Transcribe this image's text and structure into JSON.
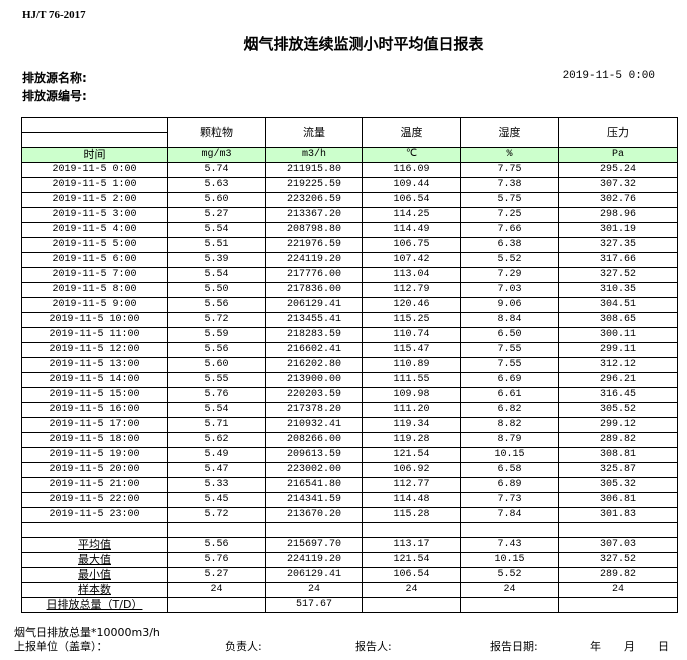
{
  "standard": "HJ/T  76-2017",
  "title": "烟气排放连续监测小时平均值日报表",
  "source_name_label": "排放源名称:",
  "source_id_label": "排放源编号:",
  "report_datetime": "2019-11-5 0:00",
  "columns": [
    "颗粒物",
    "流量",
    "温度",
    "湿度",
    "压力"
  ],
  "time_label": "时间",
  "units": [
    "mg/m3",
    "m3/h",
    "℃",
    "%",
    "Pa"
  ],
  "header_fill_color": "#ccffcc",
  "rows": [
    [
      "2019-11-5 0:00",
      "5.74",
      "211915.80",
      "116.09",
      "7.75",
      "295.24"
    ],
    [
      "2019-11-5 1:00",
      "5.63",
      "219225.59",
      "109.44",
      "7.38",
      "307.32"
    ],
    [
      "2019-11-5 2:00",
      "5.60",
      "223206.59",
      "106.54",
      "5.75",
      "302.76"
    ],
    [
      "2019-11-5 3:00",
      "5.27",
      "213367.20",
      "114.25",
      "7.25",
      "298.96"
    ],
    [
      "2019-11-5 4:00",
      "5.54",
      "208798.80",
      "114.49",
      "7.66",
      "301.19"
    ],
    [
      "2019-11-5 5:00",
      "5.51",
      "221976.59",
      "106.75",
      "6.38",
      "327.35"
    ],
    [
      "2019-11-5 6:00",
      "5.39",
      "224119.20",
      "107.42",
      "5.52",
      "317.66"
    ],
    [
      "2019-11-5 7:00",
      "5.54",
      "217776.00",
      "113.04",
      "7.29",
      "327.52"
    ],
    [
      "2019-11-5 8:00",
      "5.50",
      "217836.00",
      "112.79",
      "7.03",
      "310.35"
    ],
    [
      "2019-11-5 9:00",
      "5.56",
      "206129.41",
      "120.46",
      "9.06",
      "304.51"
    ],
    [
      "2019-11-5 10:00",
      "5.72",
      "213455.41",
      "115.25",
      "8.84",
      "308.65"
    ],
    [
      "2019-11-5 11:00",
      "5.59",
      "218283.59",
      "110.74",
      "6.50",
      "300.11"
    ],
    [
      "2019-11-5 12:00",
      "5.56",
      "216602.41",
      "115.47",
      "7.55",
      "299.11"
    ],
    [
      "2019-11-5 13:00",
      "5.60",
      "216202.80",
      "110.89",
      "7.55",
      "312.12"
    ],
    [
      "2019-11-5 14:00",
      "5.55",
      "213900.00",
      "111.55",
      "6.69",
      "296.21"
    ],
    [
      "2019-11-5 15:00",
      "5.76",
      "220203.59",
      "109.98",
      "6.61",
      "316.45"
    ],
    [
      "2019-11-5 16:00",
      "5.54",
      "217378.20",
      "111.20",
      "6.82",
      "305.52"
    ],
    [
      "2019-11-5 17:00",
      "5.71",
      "210932.41",
      "119.34",
      "8.82",
      "299.12"
    ],
    [
      "2019-11-5 18:00",
      "5.62",
      "208266.00",
      "119.28",
      "8.79",
      "289.82"
    ],
    [
      "2019-11-5 19:00",
      "5.49",
      "209613.59",
      "121.54",
      "10.15",
      "308.81"
    ],
    [
      "2019-11-5 20:00",
      "5.47",
      "223002.00",
      "106.92",
      "6.58",
      "325.87"
    ],
    [
      "2019-11-5 21:00",
      "5.33",
      "216541.80",
      "112.77",
      "6.89",
      "305.32"
    ],
    [
      "2019-11-5 22:00",
      "5.45",
      "214341.59",
      "114.48",
      "7.73",
      "306.81"
    ],
    [
      "2019-11-5 23:00",
      "5.72",
      "213670.20",
      "115.28",
      "7.84",
      "301.83"
    ]
  ],
  "summary": [
    [
      "平均值",
      "5.56",
      "215697.70",
      "113.17",
      "7.43",
      "307.03"
    ],
    [
      "最大值",
      "5.76",
      "224119.20",
      "121.54",
      "10.15",
      "327.52"
    ],
    [
      "最小值",
      "5.27",
      "206129.41",
      "106.54",
      "5.52",
      "289.82"
    ],
    [
      "样本数",
      "24",
      "24",
      "24",
      "24",
      "24"
    ],
    [
      "日排放总量（T/D）",
      "",
      "517.67",
      "",
      "",
      ""
    ]
  ],
  "footer": {
    "note": "烟气日排放总量*10000m3/h",
    "unit_label": "上报单位（盖章）：",
    "responsible_label": "负责人:",
    "reporter_label": "报告人:",
    "report_date_label": "报告日期:",
    "year": "年",
    "month": "月",
    "day": "日"
  }
}
